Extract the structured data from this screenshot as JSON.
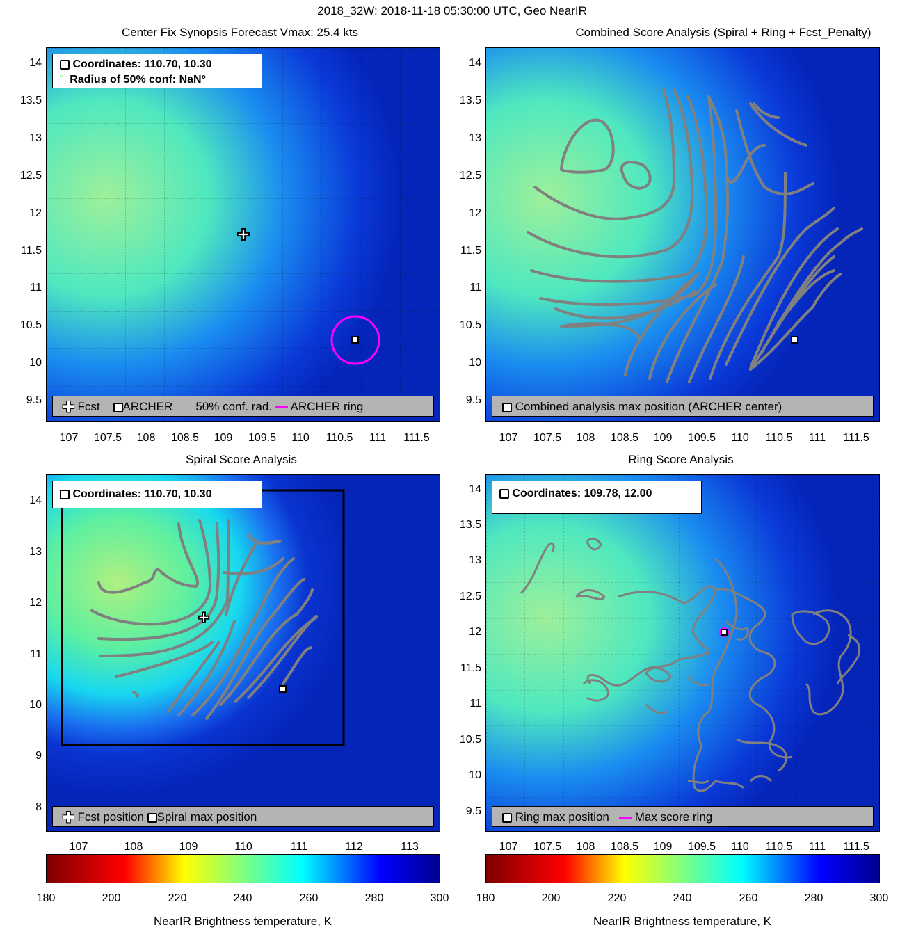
{
  "title": "2018_32W: 2018-11-18 05:30:00 UTC, Geo NearIR",
  "panels": {
    "center_fix": {
      "title": "Center Fix Synopsis      Forecast Vmax: 25.4 kts",
      "info_line1": "Coordinates: 110.70, 10.30",
      "info_line2": "Radius of 50% conf: NaN°",
      "legend": {
        "fcst": "Fcst",
        "archer": "ARCHER",
        "conf": "50% conf. rad.",
        "ring": "ARCHER ring"
      },
      "xticks": [
        "107",
        "107.5",
        "108",
        "108.5",
        "109",
        "109.5",
        "110",
        "110.5",
        "111",
        "111.5"
      ],
      "yticks": [
        "14",
        "13.5",
        "13",
        "12.5",
        "12",
        "11.5",
        "11",
        "10.5",
        "10",
        "9.5"
      ]
    },
    "combined": {
      "title": "Combined Score Analysis (Spiral + Ring + Fcst_Penalty)",
      "legend": {
        "max": "Combined analysis max position (ARCHER center)"
      },
      "xticks": [
        "107",
        "107.5",
        "108",
        "108.5",
        "109",
        "109.5",
        "110",
        "110.5",
        "111",
        "111.5"
      ],
      "yticks": [
        "14",
        "13.5",
        "13",
        "12.5",
        "12",
        "11.5",
        "11",
        "10.5",
        "10",
        "9.5"
      ]
    },
    "spiral": {
      "title": "Spiral Score Analysis",
      "info_line1": "Coordinates: 110.70, 10.30",
      "legend": {
        "fcst": "Fcst position",
        "max": "Spiral max position"
      },
      "xticks": [
        "107",
        "108",
        "109",
        "110",
        "111",
        "112",
        "113"
      ],
      "yticks": [
        "14",
        "13",
        "12",
        "11",
        "10",
        "9",
        "8"
      ]
    },
    "ring": {
      "title": "Ring Score Analysis",
      "info_line1": "Coordinates: 109.78, 12.00",
      "legend": {
        "max": "Ring max position",
        "ring": "Max score ring"
      },
      "xticks": [
        "107",
        "107.5",
        "108",
        "108.5",
        "109",
        "109.5",
        "110",
        "110.5",
        "111",
        "111.5"
      ],
      "yticks": [
        "14",
        "13.5",
        "13",
        "12.5",
        "12",
        "11.5",
        "11",
        "10.5",
        "10",
        "9.5"
      ]
    }
  },
  "colorbar": {
    "label": "NearIR Brightness temperature, K",
    "ticks": [
      "180",
      "200",
      "220",
      "240",
      "260",
      "280",
      "300"
    ]
  },
  "chart_data": [
    {
      "type": "heatmap",
      "title": "Center Fix Synopsis      Forecast Vmax: 25.4 kts",
      "xlim": [
        106.7,
        111.8
      ],
      "ylim": [
        9.2,
        14.2
      ],
      "points": [
        {
          "name": "Fcst",
          "x": 109.25,
          "y": 11.72
        },
        {
          "name": "ARCHER",
          "x": 110.7,
          "y": 10.3
        }
      ],
      "colorbar": [
        180,
        300
      ]
    },
    {
      "type": "heatmap",
      "title": "Combined Score Analysis (Spiral + Ring + Fcst_Penalty)",
      "xlim": [
        106.7,
        111.8
      ],
      "ylim": [
        9.2,
        14.2
      ],
      "points": [
        {
          "name": "Combined analysis max position (ARCHER center)",
          "x": 110.7,
          "y": 10.3
        }
      ]
    },
    {
      "type": "heatmap",
      "title": "Spiral Score Analysis",
      "xlim": [
        106.7,
        113.5
      ],
      "ylim": [
        7.5,
        14.3
      ],
      "points": [
        {
          "name": "Fcst position",
          "x": 109.25,
          "y": 11.72
        },
        {
          "name": "Spiral max position",
          "x": 110.7,
          "y": 10.3
        }
      ]
    },
    {
      "type": "heatmap",
      "title": "Ring Score Analysis",
      "xlim": [
        106.7,
        111.8
      ],
      "ylim": [
        9.2,
        14.2
      ],
      "points": [
        {
          "name": "Ring max position",
          "x": 109.78,
          "y": 12.0
        }
      ],
      "colorbar": [
        180,
        300
      ]
    }
  ]
}
